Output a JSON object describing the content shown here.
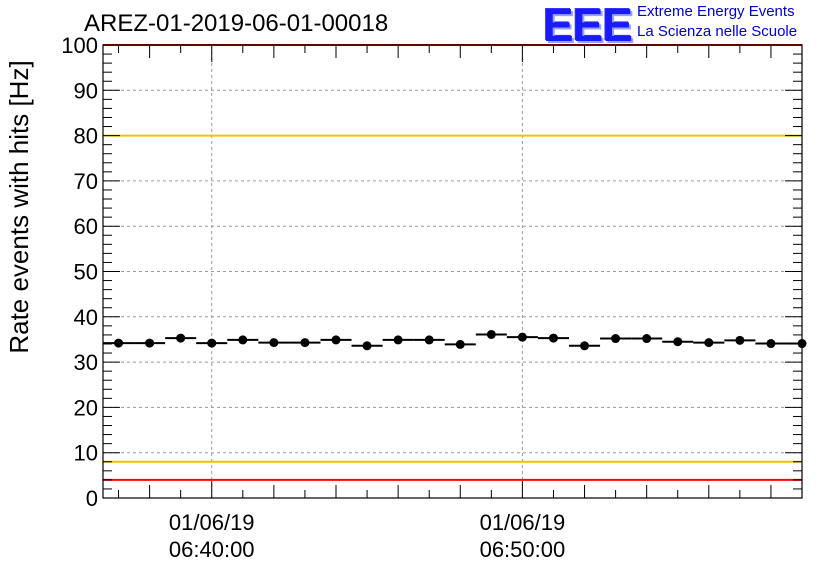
{
  "title": "AREZ-01-2019-06-01-00018",
  "logo": {
    "mark": "EEE",
    "line1": "Extreme Energy Events",
    "line2": "La Scienza nelle Scuole"
  },
  "chart_data": {
    "type": "scatter",
    "title": "AREZ-01-2019-06-01-00018",
    "ylabel": "Rate events with hits [Hz]",
    "xlabel": "",
    "ylim": [
      0,
      100
    ],
    "yticks": [
      0,
      10,
      20,
      30,
      40,
      50,
      60,
      70,
      80,
      90,
      100
    ],
    "xlim_minutes": [
      36.5,
      59
    ],
    "xticks": [
      {
        "t": 40,
        "date": "01/06/19",
        "time": "06:40:00"
      },
      {
        "t": 50,
        "date": "01/06/19",
        "time": "06:50:00"
      }
    ],
    "grid": true,
    "bin_width_minutes": 1,
    "x_minutes": [
      37,
      38,
      39,
      40,
      41,
      42,
      43,
      44,
      45,
      46,
      47,
      48,
      49,
      50,
      51,
      52,
      53,
      54,
      55,
      56,
      57,
      58,
      59
    ],
    "values": [
      34.2,
      34.2,
      35.3,
      34.2,
      34.9,
      34.3,
      34.3,
      34.9,
      33.6,
      34.9,
      34.9,
      33.9,
      36.1,
      35.5,
      35.3,
      33.6,
      35.2,
      35.2,
      34.5,
      34.3,
      34.8,
      34.1,
      34.1
    ],
    "reference_lines": [
      {
        "value": 100,
        "color": "#ff0000"
      },
      {
        "value": 80,
        "color": "#f2c200"
      },
      {
        "value": 8,
        "color": "#f2c200"
      },
      {
        "value": 4,
        "color": "#ff0000"
      }
    ],
    "marker_color": "#000000"
  }
}
